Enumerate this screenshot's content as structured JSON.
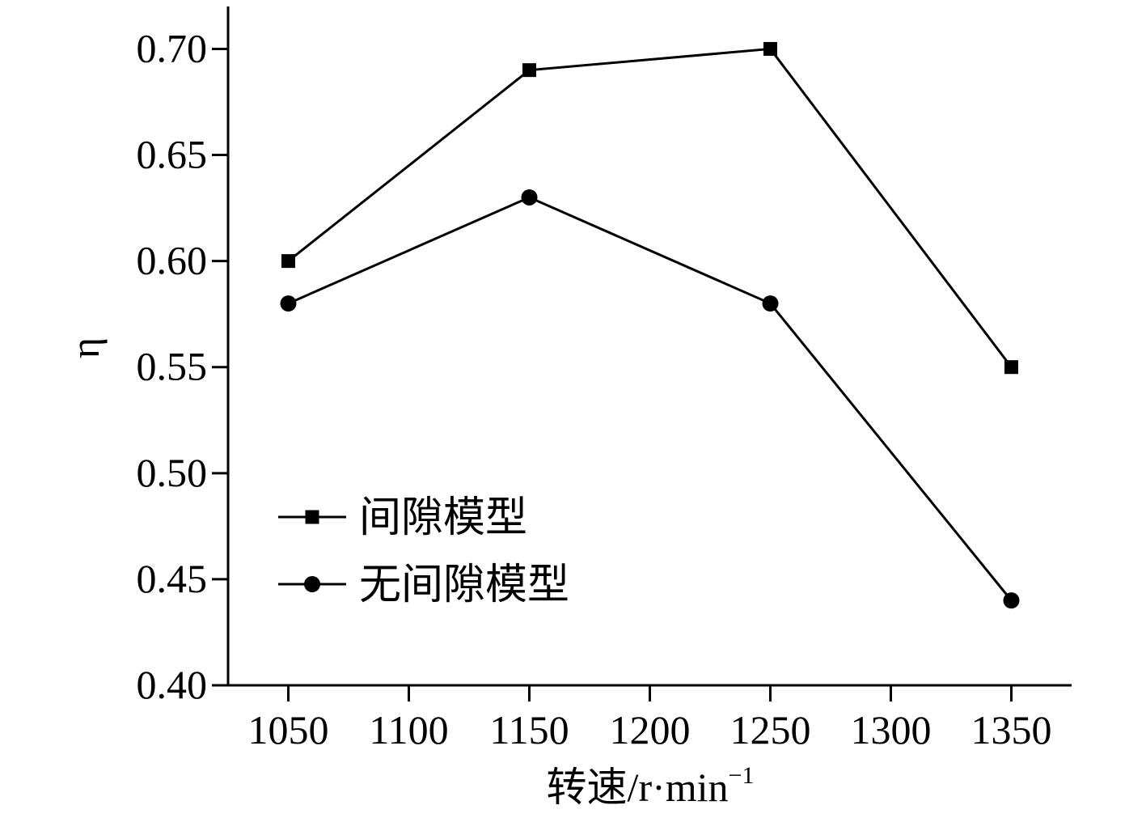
{
  "chart_data": {
    "type": "line",
    "x": [
      1050,
      1150,
      1250,
      1350
    ],
    "xlim": [
      1025,
      1375
    ],
    "ylim": [
      0.4,
      0.72
    ],
    "x_ticks": [
      "1050",
      "1100",
      "1150",
      "1200",
      "1250",
      "1300",
      "1350"
    ],
    "y_ticks": [
      "0.40",
      "0.45",
      "0.50",
      "0.55",
      "0.60",
      "0.65",
      "0.70"
    ],
    "xlabel": {
      "main": "转速/r·min",
      "sup": "−1"
    },
    "ylabel": "η",
    "legend_position": "lower-left",
    "grid": false,
    "colors": {
      "line": "#000000",
      "background": "#ffffff"
    },
    "series": [
      {
        "name": "间隙模型",
        "marker": "square",
        "values": [
          0.6,
          0.69,
          0.7,
          0.55
        ]
      },
      {
        "name": "无间隙模型",
        "marker": "circle",
        "values": [
          0.58,
          0.63,
          0.58,
          0.44
        ]
      }
    ]
  }
}
